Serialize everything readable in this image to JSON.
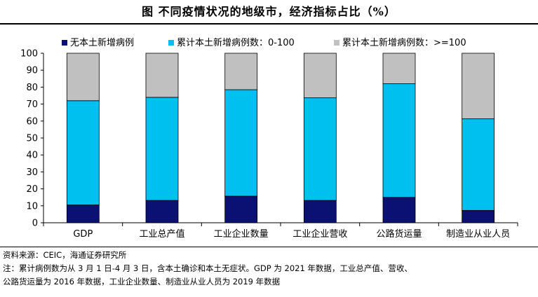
{
  "figure": {
    "title": "图   不同疫情状况的地级市，经济指标占比（%）"
  },
  "chart_data": {
    "type": "bar",
    "stacked": true,
    "title": "",
    "xlabel": "",
    "ylabel": "",
    "ylim": [
      0,
      100
    ],
    "yticks": [
      0,
      10,
      20,
      30,
      40,
      50,
      60,
      70,
      80,
      90,
      100
    ],
    "grid": false,
    "legend_position": "top",
    "categories": [
      "GDP",
      "工业总产值",
      "工业企业数量",
      "工业企业营收",
      "公路货运量",
      "制造业从业人员"
    ],
    "series": [
      {
        "name": "无本土新增病例",
        "color": "#0a1172",
        "values": [
          10.5,
          13.2,
          15.7,
          13.2,
          15.0,
          7.3
        ]
      },
      {
        "name": "累计本土新增病例数：0-100",
        "color": "#00c0f0",
        "values": [
          61.5,
          60.8,
          62.8,
          60.5,
          67.0,
          54.0
        ]
      },
      {
        "name": "累计本土新增病例数：>=100",
        "color": "#c0c0c0",
        "values": [
          28.0,
          26.0,
          21.5,
          26.3,
          18.0,
          38.7
        ]
      }
    ]
  },
  "notes": {
    "source": "资料来源：CEIC，海通证券研究所",
    "note_line1": "注：累计病例数为从 3 月 1 日-4 月 3 日，含本土确诊和本土无症状。GDP 为 2021 年数据，工业总产值、营收、",
    "note_line2": "公路货运量为 2016 年数据，工业企业数量、制造业从业人员为 2019 年数据"
  }
}
